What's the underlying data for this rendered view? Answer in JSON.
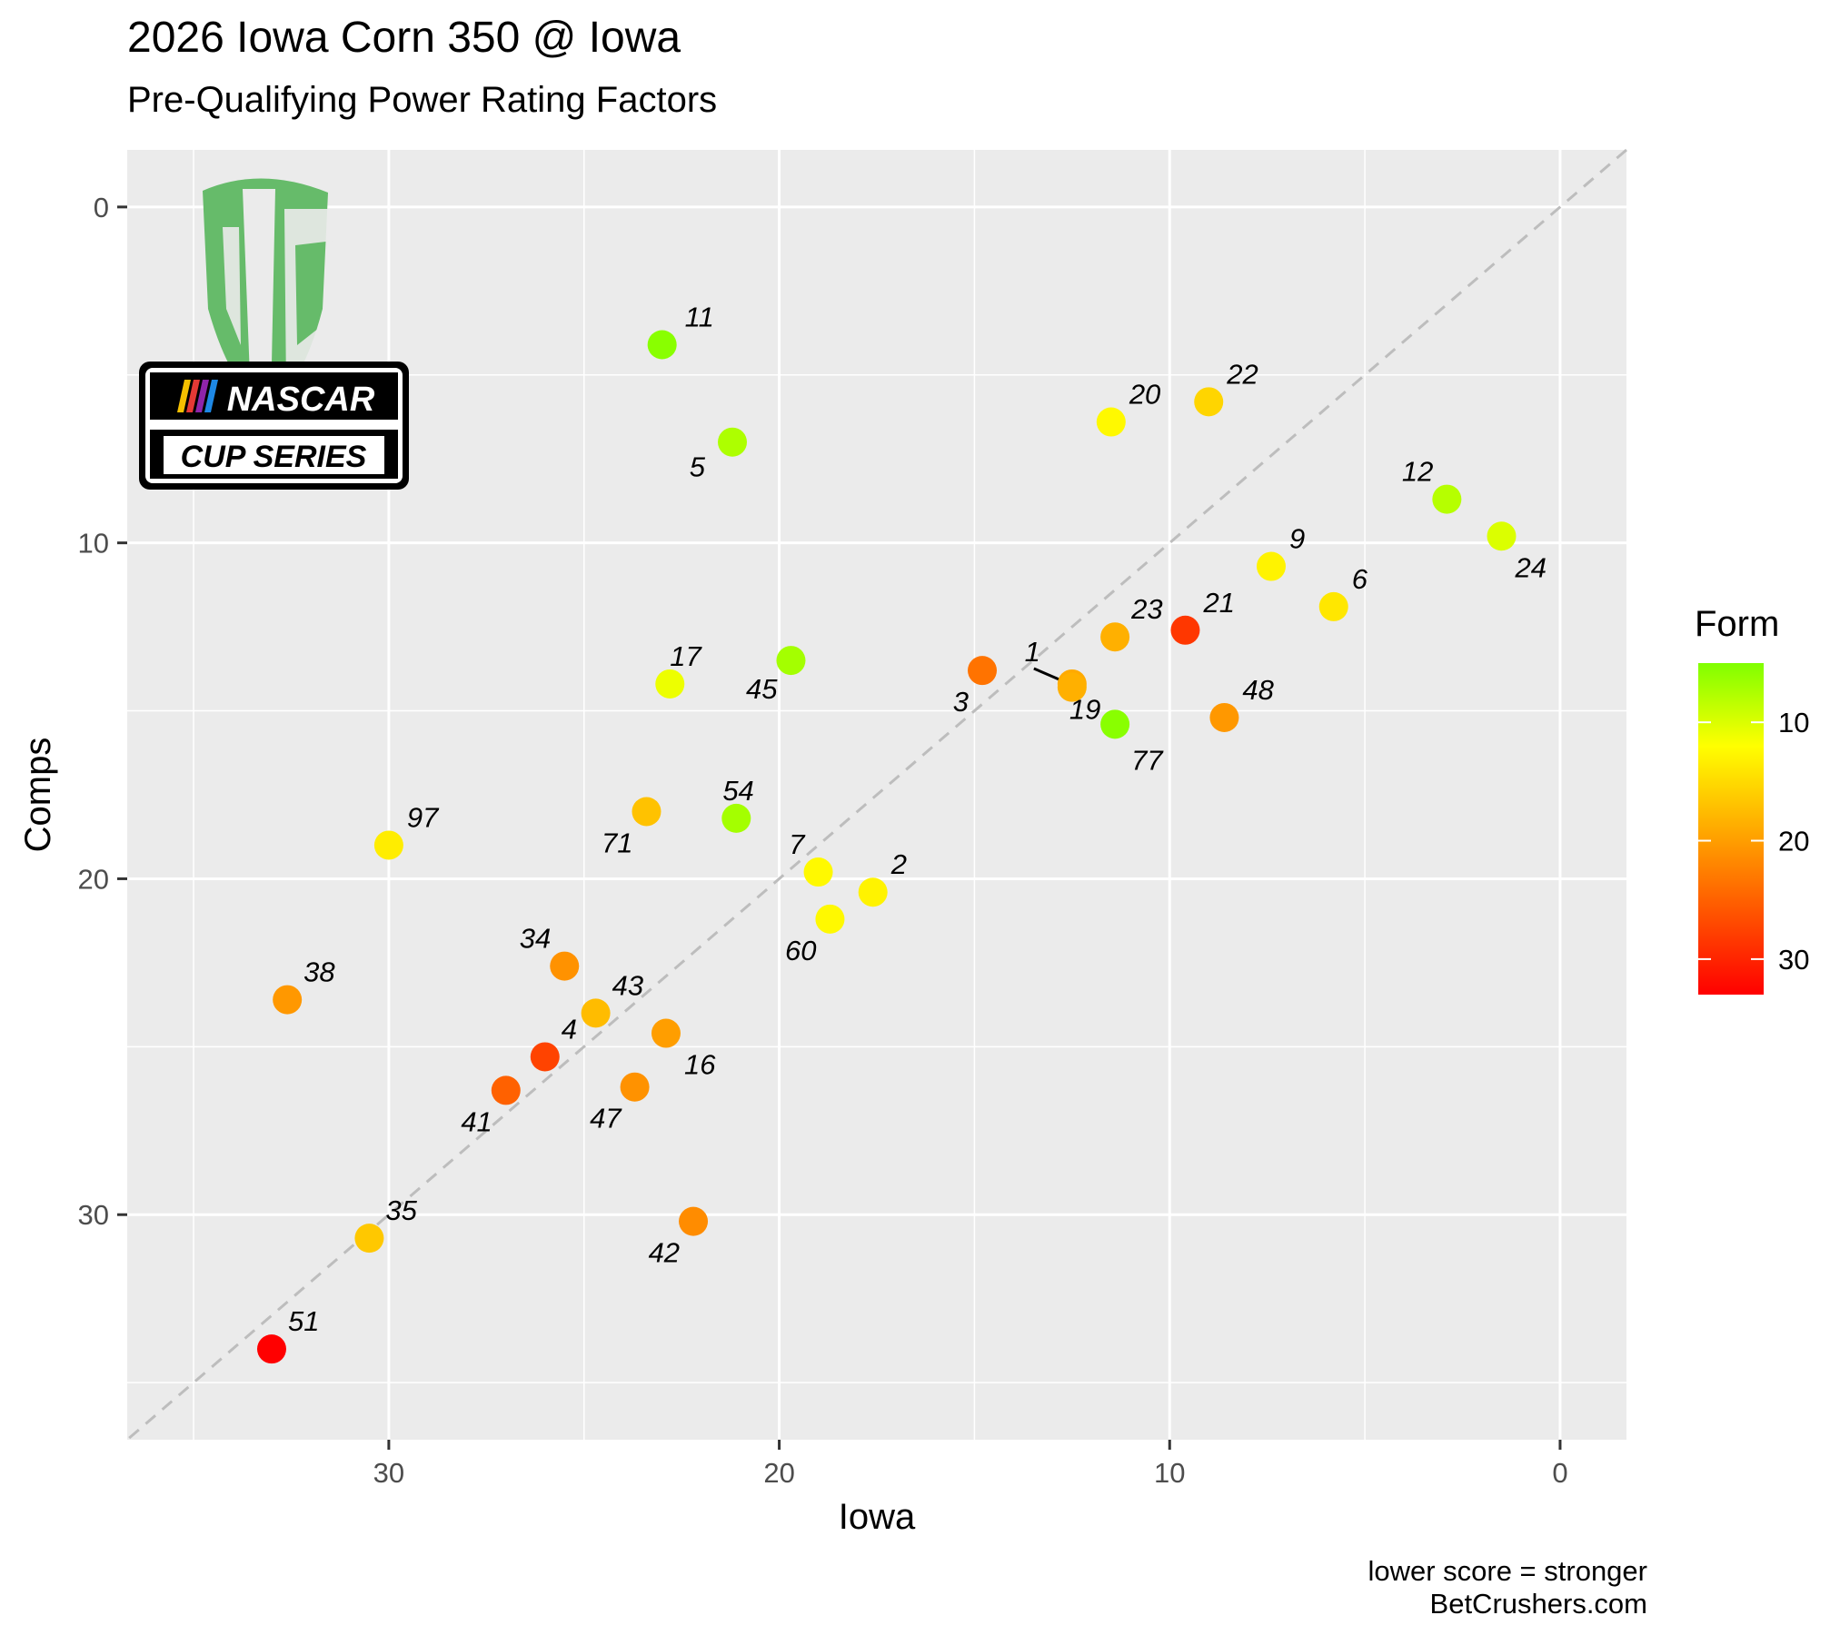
{
  "title": "2026 Iowa Corn 350 @ Iowa",
  "subtitle": "Pre-Qualifying Power Rating Factors",
  "caption_lines": [
    "lower score = stronger",
    "BetCrushers.com"
  ],
  "logos": {
    "brand": "BC shield logo",
    "series_badge": {
      "line1": "NASCAR",
      "line2": "CUP SERIES"
    }
  },
  "colors": {
    "panel_bg": "#ebebeb",
    "grid": "#ffffff",
    "diagonal": "#bdbdbd"
  },
  "chart_data": {
    "type": "scatter",
    "xlabel": "Iowa",
    "ylabel": "Comps",
    "x_reversed": true,
    "y_reversed": true,
    "xlim": [
      36.7,
      -1.7
    ],
    "ylim": [
      -1.7,
      36.7
    ],
    "x_ticks": [
      30,
      20,
      10,
      0
    ],
    "y_ticks": [
      0,
      10,
      20,
      30
    ],
    "grid": true,
    "reference_line": "y = x (dashed)",
    "legend": {
      "title": "Form",
      "placement": "right",
      "ticks": [
        10,
        20,
        30
      ],
      "range": [
        5,
        33
      ],
      "color_low": "#80ff00",
      "color_mid": "#ffff00",
      "color_high": "#ff0000"
    },
    "points": [
      {
        "label": "11",
        "x": 23.0,
        "y": 4.1,
        "form": 5.5
      },
      {
        "label": "5",
        "x": 21.2,
        "y": 7.0,
        "form": 7.5
      },
      {
        "label": "20",
        "x": 11.5,
        "y": 6.4,
        "form": 12.5
      },
      {
        "label": "22",
        "x": 9.0,
        "y": 5.8,
        "form": 15.5
      },
      {
        "label": "12",
        "x": 2.9,
        "y": 8.7,
        "form": 8.0
      },
      {
        "label": "24",
        "x": 1.5,
        "y": 9.8,
        "form": 10.0
      },
      {
        "label": "9",
        "x": 7.4,
        "y": 10.7,
        "form": 13.0
      },
      {
        "label": "6",
        "x": 5.8,
        "y": 11.9,
        "form": 14.0
      },
      {
        "label": "23",
        "x": 11.4,
        "y": 12.8,
        "form": 18.5
      },
      {
        "label": "21",
        "x": 9.6,
        "y": 12.6,
        "form": 28.5
      },
      {
        "label": "3",
        "x": 14.8,
        "y": 13.8,
        "form": 23.5
      },
      {
        "label": "1",
        "x": 12.5,
        "y": 14.2,
        "form": 19.0
      },
      {
        "label": "19",
        "x": 12.5,
        "y": 14.3,
        "form": 18.5
      },
      {
        "label": "48",
        "x": 8.6,
        "y": 15.2,
        "form": 20.5
      },
      {
        "label": "77",
        "x": 11.4,
        "y": 15.4,
        "form": 5.5
      },
      {
        "label": "17",
        "x": 22.8,
        "y": 14.2,
        "form": 11.0
      },
      {
        "label": "45",
        "x": 19.7,
        "y": 13.5,
        "form": 7.0
      },
      {
        "label": "97",
        "x": 30.0,
        "y": 19.0,
        "form": 13.5
      },
      {
        "label": "71",
        "x": 23.4,
        "y": 18.0,
        "form": 17.0
      },
      {
        "label": "54",
        "x": 21.1,
        "y": 18.2,
        "form": 7.0
      },
      {
        "label": "7",
        "x": 19.0,
        "y": 19.8,
        "form": 12.5
      },
      {
        "label": "2",
        "x": 17.6,
        "y": 20.4,
        "form": 13.0
      },
      {
        "label": "60",
        "x": 18.7,
        "y": 21.2,
        "form": 12.5
      },
      {
        "label": "38",
        "x": 32.6,
        "y": 23.6,
        "form": 20.5
      },
      {
        "label": "34",
        "x": 25.5,
        "y": 22.6,
        "form": 21.0
      },
      {
        "label": "43",
        "x": 24.7,
        "y": 24.0,
        "form": 17.5
      },
      {
        "label": "16",
        "x": 22.9,
        "y": 24.6,
        "form": 20.0
      },
      {
        "label": "4",
        "x": 26.0,
        "y": 25.3,
        "form": 27.5
      },
      {
        "label": "41",
        "x": 27.0,
        "y": 26.3,
        "form": 25.0
      },
      {
        "label": "47",
        "x": 23.7,
        "y": 26.2,
        "form": 21.0
      },
      {
        "label": "42",
        "x": 22.2,
        "y": 30.2,
        "form": 21.5
      },
      {
        "label": "35",
        "x": 30.5,
        "y": 30.7,
        "form": 16.5
      },
      {
        "label": "51",
        "x": 33.0,
        "y": 34.0,
        "form": 33.0
      }
    ]
  }
}
